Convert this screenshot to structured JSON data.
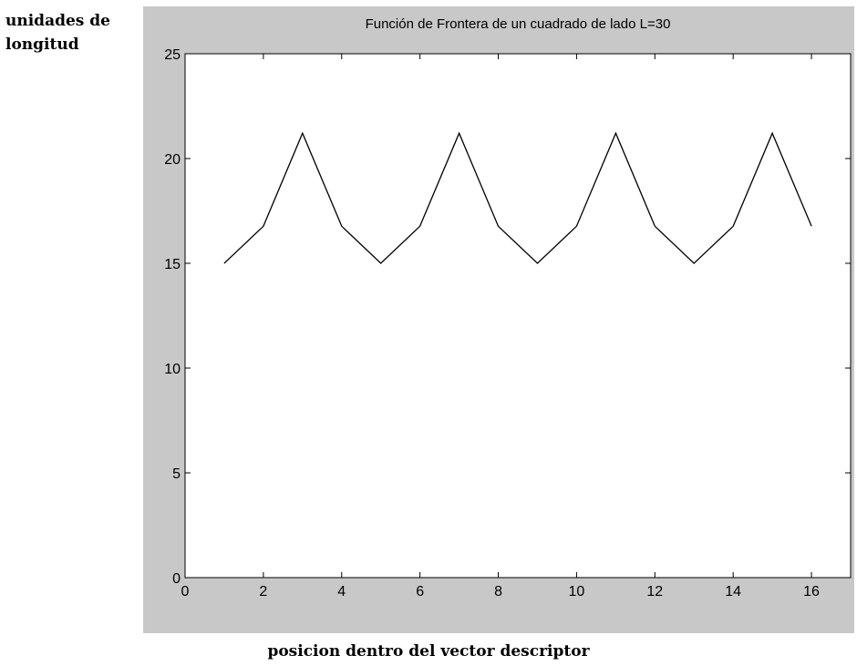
{
  "outer_labels": {
    "y": "unidades de\nlongitud",
    "x": "posicion dentro del vector descriptor"
  },
  "chart_data": {
    "type": "line",
    "title": "Función de Frontera de un cuadrado de lado L=30",
    "xlabel": "posicion dentro del vector descriptor",
    "ylabel": "unidades de longitud",
    "xlim": [
      0,
      17
    ],
    "ylim": [
      0,
      25
    ],
    "xticks": [
      0,
      2,
      4,
      6,
      8,
      10,
      12,
      14,
      16
    ],
    "yticks": [
      0,
      5,
      10,
      15,
      20,
      25
    ],
    "grid": false,
    "colors": {
      "line": "#000000",
      "axes_bg": "#ffffff",
      "frame_bg": "#c8c8c8"
    },
    "series": [
      {
        "x": [
          1,
          2,
          3,
          4,
          5,
          6,
          7,
          8,
          9,
          10,
          11,
          12,
          13,
          14,
          15,
          16
        ],
        "y": [
          15,
          16.77,
          21.21,
          16.77,
          15,
          16.77,
          21.21,
          16.77,
          15,
          16.77,
          21.21,
          16.77,
          15,
          16.77,
          21.21,
          16.77
        ]
      }
    ]
  }
}
